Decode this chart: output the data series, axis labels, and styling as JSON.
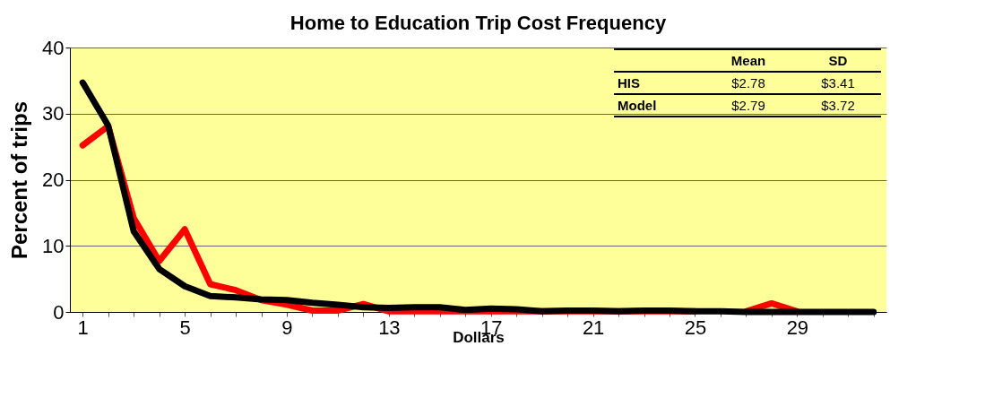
{
  "chart_data": {
    "type": "line",
    "title": "Home to Education Trip Cost Frequency",
    "xlabel": "Dollars",
    "ylabel": "Percent of trips",
    "categories": [
      "1",
      null,
      null,
      null,
      "5",
      null,
      null,
      null,
      "9",
      null,
      null,
      null,
      "13",
      null,
      null,
      null,
      "17",
      null,
      null,
      null,
      "21",
      null,
      null,
      null,
      "25",
      null,
      null,
      null,
      "29",
      null,
      null,
      null
    ],
    "series": [
      {
        "color": "#ff0000",
        "values": [
          25.2,
          28.1,
          14.2,
          7.7,
          12.5,
          4.2,
          3.3,
          1.8,
          1.1,
          0.2,
          0.2,
          1.2,
          0.1,
          0.1,
          0.1,
          0.1,
          0.1,
          0.1,
          0.1,
          0.1,
          0.1,
          0.1,
          0.1,
          0.1,
          0.1,
          null,
          0.1,
          1.3,
          0.1,
          null,
          null,
          null
        ]
      },
      {
        "color": "#000000",
        "values": [
          34.7,
          28.2,
          12.2,
          6.5,
          3.9,
          2.4,
          2.2,
          1.9,
          1.8,
          1.4,
          1.1,
          0.7,
          0.6,
          0.7,
          0.7,
          0.3,
          0.5,
          0.4,
          0.1,
          0.2,
          0.2,
          0.1,
          0.2,
          0.2,
          0.1,
          0.1,
          0,
          0,
          0,
          0,
          0,
          0
        ]
      }
    ],
    "ylim": [
      0,
      40
    ],
    "yticks": [
      0,
      10,
      20,
      30,
      40
    ],
    "grid": "y",
    "legend": false,
    "annotations": [
      "Mean",
      "SD",
      "HIS",
      "$2.78",
      "$3.41",
      "Model",
      "$2.79",
      "$3.72"
    ]
  }
}
